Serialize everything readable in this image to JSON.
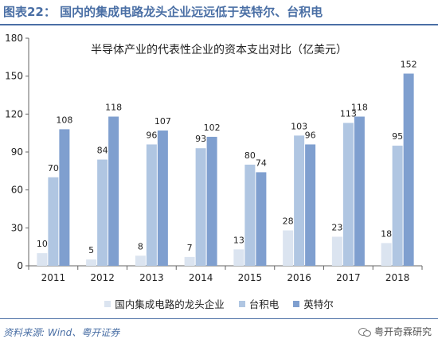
{
  "header": {
    "label": "图表22：",
    "text": "国内的集成电路龙头企业远远低于英特尔、台积电"
  },
  "footer": {
    "source": "资料来源: Wind、粤开证券",
    "watermark": "粤开奇霖研究"
  },
  "colors": {
    "domestic": "#dbe4f0",
    "tsmc": "#b0c6e2",
    "intel": "#7f9fcf"
  },
  "icons": [
    "wechat-icon"
  ],
  "chart_data": {
    "type": "bar",
    "title": "半导体产业的代表性企业的资本支出对比（亿美元）",
    "categories": [
      "2011",
      "2012",
      "2013",
      "2014",
      "2015",
      "2016",
      "2017",
      "2018"
    ],
    "series": [
      {
        "name": "国内集成电路的龙头企业",
        "values": [
          10,
          5,
          8,
          7,
          13,
          28,
          23,
          18
        ]
      },
      {
        "name": "台积电",
        "values": [
          70,
          84,
          96,
          93,
          80,
          103,
          113,
          95
        ]
      },
      {
        "name": "英特尔",
        "values": [
          108,
          118,
          107,
          102,
          74,
          96,
          118,
          152
        ]
      }
    ],
    "ylim": [
      0,
      180
    ],
    "yticks": [
      0,
      30,
      60,
      90,
      120,
      150,
      180
    ],
    "legend_position": "bottom",
    "grid": false
  }
}
